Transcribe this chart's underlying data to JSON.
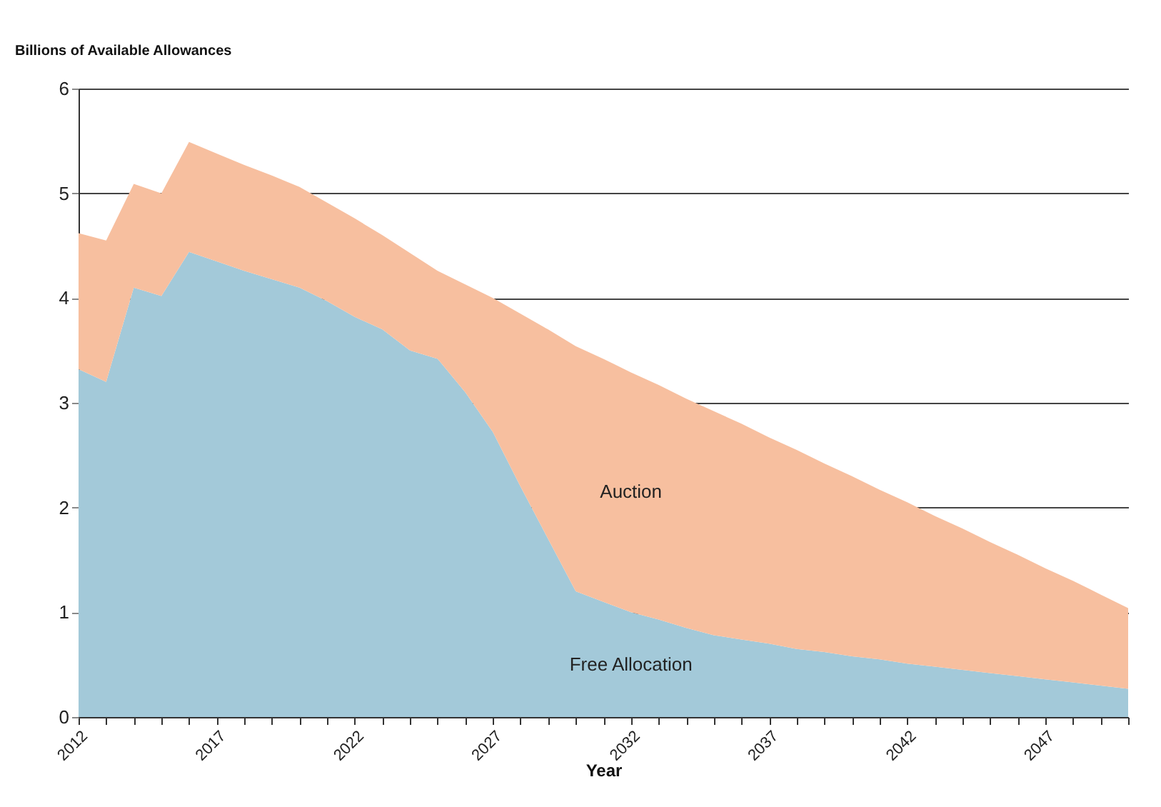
{
  "chart_data": {
    "type": "area",
    "stacked": true,
    "ylabel": "Billions of Available Allowances",
    "xlabel": "Year",
    "x": [
      2012,
      2013,
      2014,
      2015,
      2016,
      2017,
      2018,
      2019,
      2020,
      2021,
      2022,
      2023,
      2024,
      2025,
      2026,
      2027,
      2028,
      2029,
      2030,
      2031,
      2032,
      2033,
      2034,
      2035,
      2036,
      2037,
      2038,
      2039,
      2040,
      2041,
      2042,
      2043,
      2044,
      2045,
      2046,
      2047,
      2048,
      2049,
      2050
    ],
    "series": [
      {
        "name": "Free Allocation",
        "color": "#a3c9d9",
        "values": [
          3.32,
          3.2,
          4.1,
          4.02,
          4.44,
          4.35,
          4.26,
          4.18,
          4.1,
          3.97,
          3.82,
          3.7,
          3.5,
          3.42,
          3.1,
          2.72,
          2.2,
          1.7,
          1.2,
          1.1,
          1.0,
          0.93,
          0.85,
          0.78,
          0.74,
          0.7,
          0.65,
          0.62,
          0.58,
          0.55,
          0.51,
          0.48,
          0.45,
          0.42,
          0.39,
          0.36,
          0.33,
          0.3,
          0.27
        ]
      },
      {
        "name": "Auction",
        "color": "#f7bf9f",
        "values": [
          1.3,
          1.35,
          0.99,
          0.98,
          1.05,
          1.03,
          1.01,
          0.99,
          0.96,
          0.94,
          0.94,
          0.9,
          0.93,
          0.84,
          1.03,
          1.28,
          1.65,
          2.0,
          2.34,
          2.32,
          2.29,
          2.24,
          2.19,
          2.14,
          2.06,
          1.97,
          1.9,
          1.8,
          1.72,
          1.62,
          1.54,
          1.44,
          1.35,
          1.25,
          1.16,
          1.06,
          0.97,
          0.87,
          0.77
        ]
      }
    ],
    "xlim": [
      2012,
      2050
    ],
    "xticks": [
      2012,
      {
        "value": 2013,
        "label": null
      },
      {
        "value": 2014,
        "label": null
      },
      {
        "value": 2015,
        "label": null
      },
      {
        "value": 2016,
        "label": null
      },
      2017,
      {
        "value": 2018,
        "label": null
      },
      {
        "value": 2019,
        "label": null
      },
      {
        "value": 2020,
        "label": null
      },
      {
        "value": 2021,
        "label": null
      },
      2022,
      {
        "value": 2023,
        "label": null
      },
      {
        "value": 2024,
        "label": null
      },
      {
        "value": 2025,
        "label": null
      },
      {
        "value": 2026,
        "label": null
      },
      2027,
      {
        "value": 2028,
        "label": null
      },
      {
        "value": 2029,
        "label": null
      },
      {
        "value": 2030,
        "label": null
      },
      {
        "value": 2031,
        "label": null
      },
      2032,
      {
        "value": 2033,
        "label": null
      },
      {
        "value": 2034,
        "label": null
      },
      {
        "value": 2035,
        "label": null
      },
      {
        "value": 2036,
        "label": null
      },
      2037,
      {
        "value": 2038,
        "label": null
      },
      {
        "value": 2039,
        "label": null
      },
      {
        "value": 2040,
        "label": null
      },
      {
        "value": 2041,
        "label": null
      },
      2042,
      {
        "value": 2043,
        "label": null
      },
      {
        "value": 2044,
        "label": null
      },
      {
        "value": 2045,
        "label": null
      },
      {
        "value": 2046,
        "label": null
      },
      2047,
      {
        "value": 2048,
        "label": null
      },
      {
        "value": 2049,
        "label": null
      },
      {
        "value": 2050,
        "label": null
      }
    ],
    "ylim": [
      0,
      6
    ],
    "yticks": [
      0,
      1,
      2,
      3,
      4,
      5,
      6
    ],
    "grid": "y",
    "legend": false
  }
}
